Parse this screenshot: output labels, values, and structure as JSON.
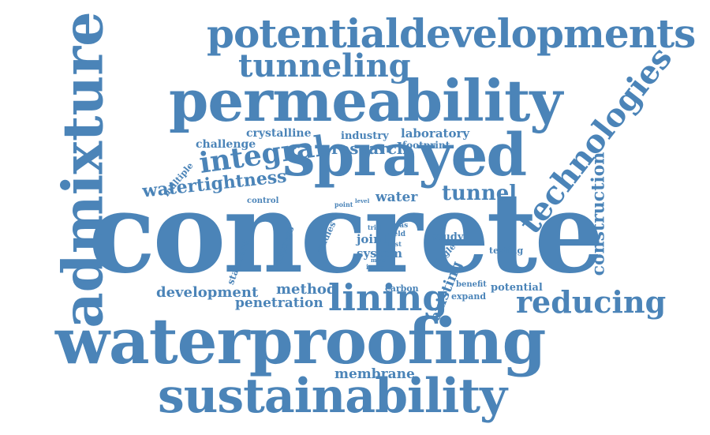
{
  "word_color": "#4b84b8",
  "background": "#ffffff",
  "words": [
    {
      "key": "concrete",
      "text": "concrete"
    },
    {
      "key": "waterproofing",
      "text": "waterproofing"
    },
    {
      "key": "admixture",
      "text": "admixture"
    },
    {
      "key": "potentialdevelopments",
      "text": "potentialdevelopments"
    },
    {
      "key": "permeability",
      "text": "permeability"
    },
    {
      "key": "sprayed",
      "text": "sprayed"
    },
    {
      "key": "sustainability",
      "text": "sustainability"
    },
    {
      "key": "technologies",
      "text": "technologies"
    },
    {
      "key": "tunneling",
      "text": "tunneling"
    },
    {
      "key": "lining",
      "text": "lining"
    },
    {
      "key": "reducing",
      "text": "reducing"
    },
    {
      "key": "integral",
      "text": "integral"
    },
    {
      "key": "watertightness",
      "text": "watertightness"
    },
    {
      "key": "tunnel",
      "text": "tunnel"
    },
    {
      "key": "construction",
      "text": "construction"
    },
    {
      "key": "research",
      "text": "research"
    },
    {
      "key": "crystalline",
      "text": "crystalline"
    },
    {
      "key": "challenge",
      "text": "challenge"
    },
    {
      "key": "industry",
      "text": "industry"
    },
    {
      "key": "laboratory",
      "text": "laboratory"
    },
    {
      "key": "footprint",
      "text": "footprint"
    },
    {
      "key": "multiple",
      "text": "multiple"
    },
    {
      "key": "control",
      "text": "control"
    },
    {
      "key": "point",
      "text": "point"
    },
    {
      "key": "level",
      "text": "level"
    },
    {
      "key": "water",
      "text": "water"
    },
    {
      "key": "development",
      "text": "development"
    },
    {
      "key": "penetration",
      "text": "penetration"
    },
    {
      "key": "method",
      "text": "method"
    },
    {
      "key": "membrane",
      "text": "membrane"
    },
    {
      "key": "existing",
      "text": "existing"
    },
    {
      "key": "potential",
      "text": "potential"
    },
    {
      "key": "expand",
      "text": "expand"
    },
    {
      "key": "benefit",
      "text": "benefit"
    },
    {
      "key": "carbon",
      "text": "carbon"
    },
    {
      "key": "testing",
      "text": "testing"
    },
    {
      "key": "study",
      "text": "study"
    },
    {
      "key": "single",
      "text": "single"
    },
    {
      "key": "joint",
      "text": "joint"
    },
    {
      "key": "system",
      "text": "system"
    },
    {
      "key": "field",
      "text": "field"
    },
    {
      "key": "test",
      "text": "test"
    },
    {
      "key": "pas",
      "text": "pas"
    },
    {
      "key": "mixe",
      "text": "mixe"
    },
    {
      "key": "issue",
      "text": "issue"
    },
    {
      "key": "trial",
      "text": "trial"
    },
    {
      "key": "studies",
      "text": "studies"
    },
    {
      "key": "ingress",
      "text": "ingress"
    },
    {
      "key": "standard",
      "text": "standard"
    }
  ]
}
